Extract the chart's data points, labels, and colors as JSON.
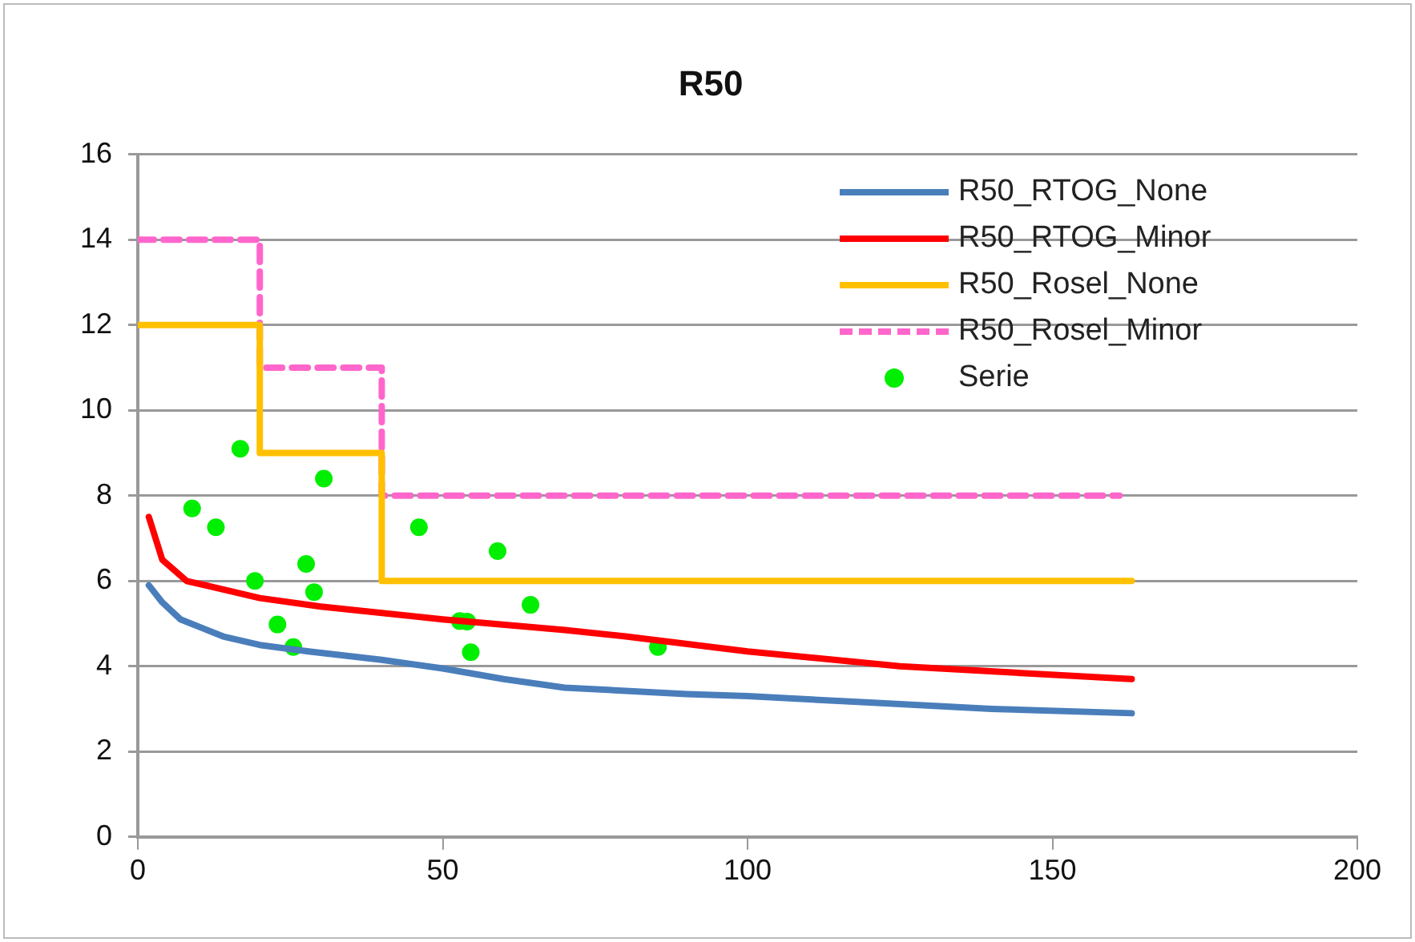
{
  "chart_data": {
    "type": "line",
    "title": "R50",
    "xlim": [
      0,
      200
    ],
    "xticks": [
      0,
      50,
      100,
      150,
      200
    ],
    "ylim": [
      0,
      16
    ],
    "yticks": [
      0,
      2,
      4,
      6,
      8,
      10,
      12,
      14,
      16
    ],
    "grid": "y",
    "legend": "top right",
    "series": [
      {
        "name": "R50_RTOG_None",
        "color": "#4a7ebb",
        "type": "line",
        "marker": "none",
        "x": [
          1.8,
          4,
          7,
          14,
          20,
          28,
          40,
          50,
          60,
          70,
          90,
          100,
          120,
          140,
          163
        ],
        "values": [
          5.9,
          5.5,
          5.1,
          4.7,
          4.5,
          4.35,
          4.15,
          3.95,
          3.7,
          3.5,
          3.35,
          3.3,
          3.15,
          3.0,
          2.9
        ]
      },
      {
        "name": "R50_RTOG_Minor",
        "color": "#ff0000",
        "type": "line",
        "marker": "none",
        "x": [
          1.8,
          4,
          8,
          20,
          30,
          50,
          70,
          80,
          100,
          125,
          163
        ],
        "values": [
          7.5,
          6.5,
          6.0,
          5.6,
          5.4,
          5.1,
          4.85,
          4.7,
          4.35,
          4.0,
          3.7
        ]
      },
      {
        "name": "R50_Rosel_None",
        "color": "#ffc000",
        "type": "step",
        "marker": "none",
        "x": [
          0,
          20,
          40,
          163
        ],
        "values": [
          12,
          9,
          6,
          6
        ]
      },
      {
        "name": "R50_Rosel_Minor",
        "color": "#ff66cc",
        "type": "step",
        "marker": "none",
        "line_style": "dashed",
        "x": [
          0,
          20,
          40,
          161
        ],
        "values": [
          14,
          11,
          8,
          8
        ]
      },
      {
        "name": "Serie",
        "color": "#00ee00",
        "type": "scatter",
        "marker": "circle",
        "x": [
          16.8,
          8.9,
          12.8,
          30.5,
          19.2,
          27.6,
          28.9,
          22.9,
          25.5,
          46.1,
          59,
          64.4,
          52.8,
          54,
          54.6,
          85.3
        ],
        "values": [
          9.1,
          7.7,
          7.26,
          8.4,
          6.0,
          6.4,
          5.74,
          4.98,
          4.45,
          7.26,
          6.7,
          5.44,
          5.06,
          5.05,
          4.33,
          4.45
        ]
      }
    ]
  }
}
